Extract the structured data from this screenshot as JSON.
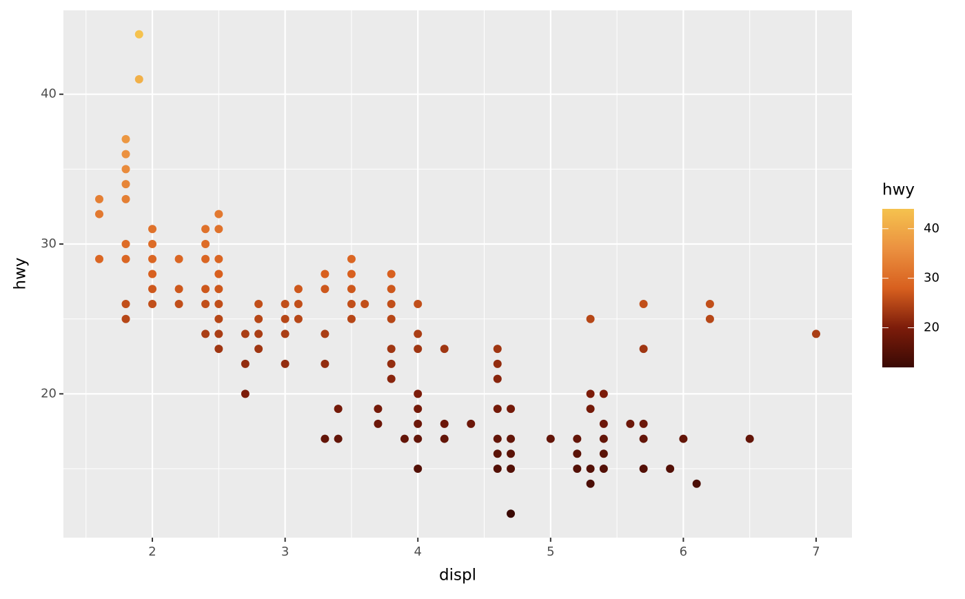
{
  "chart_data": {
    "type": "scatter",
    "x_label": "displ",
    "y_label": "hwy",
    "legend_title": "hwy",
    "x": [
      1.6,
      1.6,
      1.6,
      1.8,
      1.8,
      1.8,
      1.8,
      1.8,
      1.8,
      1.8,
      1.8,
      1.8,
      1.9,
      1.9,
      2.0,
      2.0,
      2.0,
      2.0,
      2.0,
      2.0,
      2.2,
      2.2,
      2.2,
      2.4,
      2.4,
      2.4,
      2.4,
      2.4,
      2.4,
      2.5,
      2.5,
      2.5,
      2.5,
      2.5,
      2.5,
      2.5,
      2.5,
      2.5,
      2.7,
      2.7,
      2.7,
      2.8,
      2.8,
      2.8,
      2.8,
      3.0,
      3.0,
      3.0,
      3.0,
      3.1,
      3.1,
      3.1,
      3.3,
      3.3,
      3.3,
      3.3,
      3.3,
      3.4,
      3.4,
      3.5,
      3.5,
      3.5,
      3.5,
      3.5,
      3.6,
      3.7,
      3.7,
      3.8,
      3.8,
      3.8,
      3.8,
      3.8,
      3.8,
      3.8,
      3.9,
      4.0,
      4.0,
      4.0,
      4.0,
      4.0,
      4.0,
      4.0,
      4.0,
      4.2,
      4.2,
      4.2,
      4.4,
      4.6,
      4.6,
      4.6,
      4.6,
      4.6,
      4.6,
      4.6,
      4.7,
      4.7,
      4.7,
      4.7,
      4.7,
      5.0,
      5.2,
      5.2,
      5.2,
      5.3,
      5.3,
      5.3,
      5.3,
      5.3,
      5.4,
      5.4,
      5.4,
      5.4,
      5.4,
      5.6,
      5.7,
      5.7,
      5.7,
      5.7,
      5.7,
      5.9,
      6.0,
      6.1,
      6.2,
      6.2,
      6.5,
      7.0
    ],
    "values": [
      33,
      32,
      29,
      37,
      36,
      35,
      34,
      33,
      30,
      29,
      26,
      25,
      44,
      41,
      31,
      30,
      29,
      28,
      27,
      26,
      29,
      27,
      26,
      31,
      30,
      29,
      27,
      26,
      24,
      32,
      31,
      29,
      28,
      27,
      26,
      25,
      24,
      23,
      24,
      22,
      20,
      26,
      25,
      24,
      23,
      26,
      25,
      24,
      22,
      27,
      26,
      25,
      28,
      27,
      24,
      22,
      17,
      19,
      17,
      29,
      28,
      27,
      26,
      25,
      26,
      19,
      18,
      28,
      27,
      26,
      25,
      23,
      22,
      21,
      17,
      26,
      24,
      23,
      20,
      19,
      18,
      17,
      15,
      23,
      18,
      17,
      18,
      23,
      22,
      21,
      19,
      17,
      16,
      15,
      19,
      17,
      16,
      15,
      12,
      17,
      17,
      16,
      15,
      25,
      20,
      19,
      15,
      14,
      20,
      18,
      17,
      16,
      15,
      18,
      26,
      23,
      18,
      17,
      15,
      15,
      17,
      14,
      26,
      25,
      17,
      24
    ],
    "xlim": [
      1.33,
      7.27
    ],
    "ylim": [
      10.4,
      45.6
    ],
    "xticks": [
      2,
      3,
      4,
      5,
      6,
      7
    ],
    "yticks": [
      20,
      30,
      40
    ],
    "x_minor_ticks": [
      1.5,
      2.5,
      3.5,
      4.5,
      5.5,
      6.5
    ],
    "y_minor_ticks": [
      15,
      25,
      35
    ],
    "grid": true,
    "colorbar_colors": [
      "#3a0904",
      "#7c1c0a",
      "#d8601f",
      "#eb9140",
      "#f5c24e"
    ],
    "legend_ticks": [
      20,
      30,
      40
    ]
  }
}
